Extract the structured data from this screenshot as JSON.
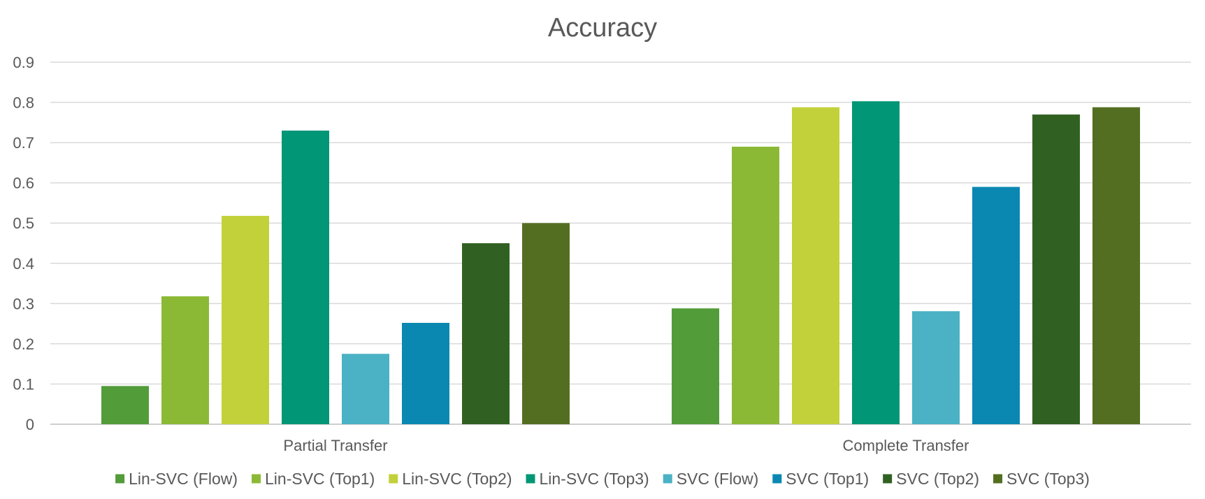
{
  "chart_data": {
    "type": "bar",
    "title": "Accuracy",
    "xlabel": "",
    "ylabel": "",
    "ylim": [
      0,
      0.9
    ],
    "yticks": [
      "0",
      "0.1",
      "0.2",
      "0.3",
      "0.4",
      "0.5",
      "0.6",
      "0.7",
      "0.8",
      "0.9"
    ],
    "grid": true,
    "legend_position": "bottom",
    "categories": [
      "Partial Transfer",
      "Complete Transfer"
    ],
    "series": [
      {
        "name": "Lin-SVC (Flow)",
        "color": "#529C3A",
        "values": [
          0.095,
          0.288
        ]
      },
      {
        "name": "Lin-SVC (Top1)",
        "color": "#8BB935",
        "values": [
          0.318,
          0.69
        ]
      },
      {
        "name": "Lin-SVC (Top2)",
        "color": "#C2D13A",
        "values": [
          0.518,
          0.788
        ]
      },
      {
        "name": "Lin-SVC (Top3)",
        "color": "#019675",
        "values": [
          0.73,
          0.803
        ]
      },
      {
        "name": "SVC (Flow)",
        "color": "#4AB2C4",
        "values": [
          0.175,
          0.281
        ]
      },
      {
        "name": "SVC (Top1)",
        "color": "#0A88B2",
        "values": [
          0.252,
          0.59
        ]
      },
      {
        "name": "SVC (Top2)",
        "color": "#316122",
        "values": [
          0.45,
          0.77
        ]
      },
      {
        "name": "SVC (Top3)",
        "color": "#546E21",
        "values": [
          0.5,
          0.788
        ]
      }
    ]
  }
}
